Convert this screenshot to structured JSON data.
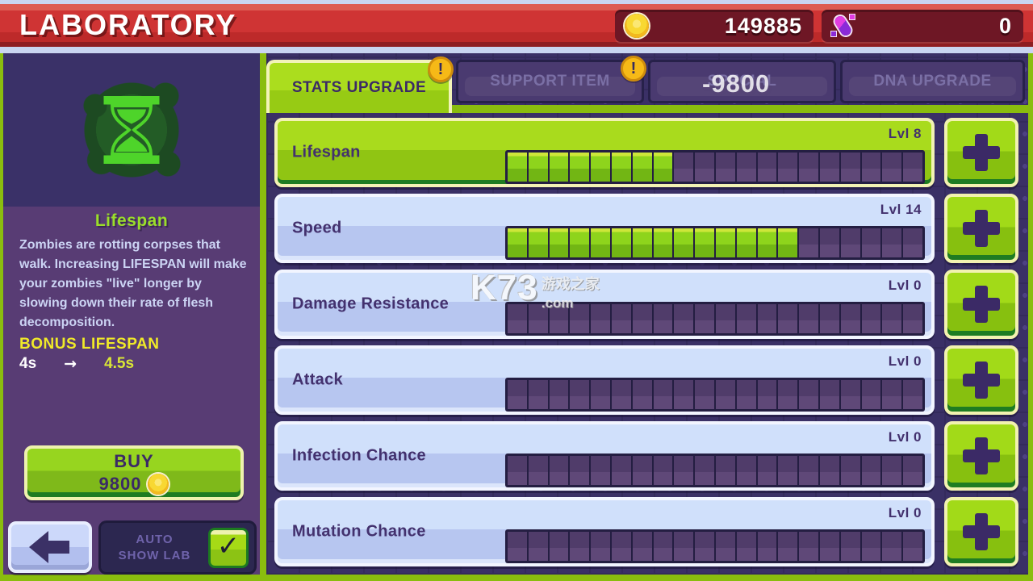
{
  "header": {
    "title": "LABORATORY",
    "coin_count": "149885",
    "dna_count": "0"
  },
  "tabs": [
    {
      "label": "STATS UPGRADE",
      "active": true,
      "badge": "!"
    },
    {
      "label": "SUPPORT ITEM",
      "active": false,
      "badge": "!"
    },
    {
      "label": "SPECIAL",
      "active": false,
      "floating_cost": "-9800"
    },
    {
      "label": "DNA UPGRADE",
      "active": false
    }
  ],
  "sidebar": {
    "stat_title": "Lifespan",
    "description": "Zombies are rotting corpses that walk. Increasing LIFESPAN will make your zombies \"live\" longer by slowing down their rate of flesh decomposition.",
    "bonus_label": "BONUS LIFESPAN",
    "bonus_current": "4s",
    "bonus_arrow": "→",
    "bonus_next": "4.5s",
    "buy_label": "BUY",
    "buy_cost": "9800",
    "auto_line1": "AUTO",
    "auto_line2": "SHOW LAB",
    "checkbox_glyph": "✓",
    "checkbox_checked": true
  },
  "stats": [
    {
      "name": "Lifespan",
      "level_label": "Lvl 8",
      "filled": 8,
      "total": 20,
      "selected": true
    },
    {
      "name": "Speed",
      "level_label": "Lvl 14",
      "filled": 14,
      "total": 20,
      "selected": false
    },
    {
      "name": "Damage Resistance",
      "level_label": "Lvl 0",
      "filled": 0,
      "total": 20,
      "selected": false
    },
    {
      "name": "Attack",
      "level_label": "Lvl 0",
      "filled": 0,
      "total": 20,
      "selected": false
    },
    {
      "name": "Infection Chance",
      "level_label": "Lvl 0",
      "filled": 0,
      "total": 20,
      "selected": false
    },
    {
      "name": "Mutation Chance",
      "level_label": "Lvl 0",
      "filled": 0,
      "total": 20,
      "selected": false
    }
  ],
  "watermark": {
    "main": "K73",
    "cn": "游戏之家",
    "domain": ".com"
  },
  "colors": {
    "accent_green": "#8abd0e",
    "header_red": "#cf3434",
    "sidebar_purple": "#583c74",
    "dark_purple": "#3a3066",
    "row_blue": "#c6d5f6",
    "gold": "#f6b917",
    "text_dark_purple": "#3b2a66"
  }
}
